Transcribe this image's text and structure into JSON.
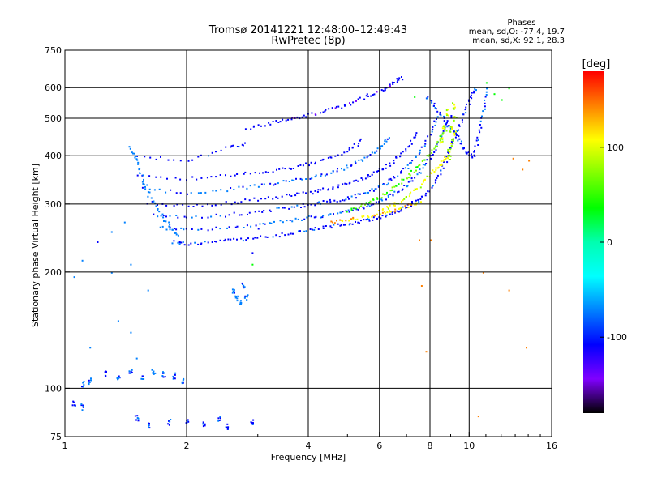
{
  "chart_data": {
    "type": "scatter",
    "title": "Tromsø 20141221 12:48:00–12:49:43",
    "subtitle": "RwPretec (8p)",
    "stats": {
      "heading": "Phases",
      "line_o": "mean, sd,O: -77.4, 19.7",
      "line_x": "mean, sd,X:  92.1, 28.3"
    },
    "xlabel": "Frequency [MHz]",
    "ylabel": "Stationary phase Virtual Height [km]",
    "xscale": "log",
    "yscale": "log",
    "xlim": [
      1,
      16
    ],
    "ylim": [
      75,
      750
    ],
    "xticks": [
      1,
      2,
      4,
      6,
      8,
      10,
      16
    ],
    "xtick_labels": [
      "1",
      "2",
      "4",
      "6",
      "8",
      "10",
      "16"
    ],
    "x_gridlines": [
      2,
      4,
      6,
      8,
      10
    ],
    "yticks": [
      75,
      100,
      200,
      300,
      400,
      500,
      600,
      750
    ],
    "ytick_labels": [
      "75",
      "100",
      "200",
      "300",
      "400",
      "500",
      "600",
      "750"
    ],
    "y_gridlines": [
      100,
      200,
      300,
      400,
      500,
      600
    ],
    "grid": true,
    "colorbar": {
      "label": "[deg]",
      "range": [
        -180,
        180
      ],
      "ticks": [
        100,
        0,
        -100
      ],
      "tick_labels": [
        "100",
        "0",
        "-100"
      ],
      "colors": [
        "#ff0000",
        "#ff8000",
        "#ffff00",
        "#80ff00",
        "#00ff00",
        "#00ffb0",
        "#00ffff",
        "#0080ff",
        "#0000ff",
        "#8000ff",
        "#000000"
      ]
    },
    "series": [
      {
        "phase": -100,
        "trace_type": "curve",
        "points": [
          [
            1.85,
            240
          ],
          [
            2.0,
            238
          ],
          [
            2.3,
            240
          ],
          [
            2.6,
            243
          ],
          [
            3.0,
            246
          ],
          [
            3.5,
            252
          ],
          [
            4.0,
            258
          ],
          [
            4.5,
            263
          ],
          [
            5.0,
            268
          ],
          [
            5.5,
            273
          ],
          [
            6.0,
            278
          ],
          [
            6.5,
            286
          ],
          [
            7.0,
            296
          ],
          [
            7.5,
            310
          ],
          [
            8.0,
            330
          ],
          [
            8.4,
            360
          ],
          [
            8.8,
            400
          ],
          [
            9.2,
            450
          ],
          [
            9.6,
            510
          ],
          [
            10.0,
            560
          ],
          [
            10.4,
            600
          ]
        ]
      },
      {
        "phase": -90,
        "trace_type": "curve",
        "points": [
          [
            1.7,
            262
          ],
          [
            2.0,
            258
          ],
          [
            2.5,
            262
          ],
          [
            3.0,
            266
          ],
          [
            3.5,
            272
          ],
          [
            4.0,
            278
          ],
          [
            4.5,
            283
          ],
          [
            5.0,
            288
          ],
          [
            5.5,
            296
          ],
          [
            6.0,
            306
          ],
          [
            6.5,
            320
          ],
          [
            7.0,
            338
          ],
          [
            7.5,
            365
          ],
          [
            8.0,
            400
          ],
          [
            8.5,
            450
          ],
          [
            9.0,
            510
          ]
        ]
      },
      {
        "phase": -95,
        "trace_type": "curve",
        "points": [
          [
            1.65,
            282
          ],
          [
            2.0,
            277
          ],
          [
            2.5,
            282
          ],
          [
            3.0,
            288
          ],
          [
            3.5,
            294
          ],
          [
            4.0,
            300
          ],
          [
            4.5,
            306
          ],
          [
            5.0,
            312
          ],
          [
            5.5,
            322
          ],
          [
            6.0,
            335
          ],
          [
            6.5,
            352
          ],
          [
            7.0,
            376
          ],
          [
            7.5,
            410
          ],
          [
            8.0,
            460
          ],
          [
            8.3,
            510
          ]
        ]
      },
      {
        "phase": -105,
        "trace_type": "curve",
        "points": [
          [
            1.6,
            304
          ],
          [
            2.0,
            298
          ],
          [
            2.5,
            303
          ],
          [
            3.0,
            310
          ],
          [
            3.5,
            316
          ],
          [
            4.0,
            322
          ],
          [
            4.5,
            330
          ],
          [
            5.0,
            340
          ],
          [
            5.5,
            352
          ],
          [
            6.0,
            368
          ],
          [
            6.5,
            390
          ],
          [
            7.0,
            420
          ],
          [
            7.4,
            460
          ]
        ]
      },
      {
        "phase": -85,
        "trace_type": "curve",
        "points": [
          [
            1.55,
            330
          ],
          [
            2.0,
            322
          ],
          [
            2.5,
            328
          ],
          [
            3.0,
            336
          ],
          [
            3.5,
            344
          ],
          [
            4.0,
            352
          ],
          [
            4.5,
            362
          ],
          [
            5.0,
            376
          ],
          [
            5.5,
            395
          ],
          [
            6.0,
            420
          ],
          [
            6.3,
            450
          ]
        ]
      },
      {
        "phase": -110,
        "trace_type": "curve",
        "points": [
          [
            1.5,
            360
          ],
          [
            2.0,
            350
          ],
          [
            2.5,
            358
          ],
          [
            3.0,
            364
          ],
          [
            3.5,
            372
          ],
          [
            4.0,
            382
          ],
          [
            4.5,
            396
          ],
          [
            5.0,
            414
          ],
          [
            5.4,
            440
          ]
        ]
      },
      {
        "phase": -100,
        "trace_type": "curve",
        "points": [
          [
            1.5,
            400
          ],
          [
            2.0,
            390
          ],
          [
            2.5,
            420
          ],
          [
            2.8,
            430
          ]
        ]
      },
      {
        "phase": -70,
        "trace_type": "curve",
        "points": [
          [
            1.45,
            420
          ],
          [
            1.5,
            390
          ],
          [
            1.55,
            350
          ],
          [
            1.6,
            320
          ],
          [
            1.7,
            290
          ],
          [
            1.8,
            265
          ],
          [
            1.9,
            250
          ]
        ]
      },
      {
        "phase": -115,
        "trace_type": "curve",
        "points": [
          [
            2.8,
            470
          ],
          [
            3.2,
            488
          ],
          [
            3.6,
            500
          ],
          [
            4.0,
            512
          ],
          [
            4.5,
            528
          ],
          [
            5.0,
            545
          ],
          [
            5.5,
            570
          ],
          [
            6.0,
            592
          ],
          [
            6.5,
            620
          ],
          [
            6.8,
            640
          ]
        ]
      },
      {
        "phase": -95,
        "trace_type": "curve",
        "points": [
          [
            7.8,
            570
          ],
          [
            8.2,
            540
          ],
          [
            8.6,
            500
          ],
          [
            9.0,
            470
          ],
          [
            9.4,
            440
          ],
          [
            9.8,
            410
          ],
          [
            10.2,
            400
          ],
          [
            10.5,
            450
          ],
          [
            10.8,
            520
          ],
          [
            11.0,
            600
          ]
        ]
      },
      {
        "phase": 120,
        "trace_type": "curve",
        "points": [
          [
            4.5,
            270
          ],
          [
            5.0,
            274
          ],
          [
            5.5,
            279
          ],
          [
            6.0,
            284
          ],
          [
            6.5,
            290
          ],
          [
            7.0,
            298
          ],
          [
            7.5,
            306
          ]
        ]
      },
      {
        "phase": 95,
        "trace_type": "curve",
        "points": [
          [
            6.0,
            290
          ],
          [
            6.5,
            300
          ],
          [
            7.0,
            315
          ],
          [
            7.5,
            335
          ],
          [
            8.0,
            360
          ],
          [
            8.4,
            380
          ],
          [
            8.8,
            400
          ],
          [
            9.0,
            430
          ],
          [
            9.2,
            460
          ]
        ]
      },
      {
        "phase": 60,
        "trace_type": "curve",
        "points": [
          [
            5.0,
            290
          ],
          [
            5.5,
            300
          ],
          [
            6.0,
            315
          ],
          [
            6.5,
            332
          ],
          [
            7.0,
            355
          ],
          [
            7.5,
            380
          ],
          [
            8.0,
            410
          ],
          [
            8.4,
            440
          ],
          [
            8.7,
            470
          ]
        ]
      },
      {
        "phase": 90,
        "trace_type": "cluster",
        "points": [
          [
            8.6,
            480
          ],
          [
            8.8,
            520
          ],
          [
            9.0,
            470
          ],
          [
            9.2,
            500
          ],
          [
            8.5,
            440
          ],
          [
            8.9,
            400
          ],
          [
            9.1,
            540
          ]
        ]
      },
      {
        "phase": -80,
        "trace_type": "cluster",
        "points": [
          [
            2.6,
            178
          ],
          [
            2.7,
            168
          ],
          [
            2.8,
            172
          ],
          [
            2.75,
            185
          ],
          [
            2.65,
            172
          ]
        ]
      },
      {
        "phase": -85,
        "trace_type": "cluster",
        "points": [
          [
            1.1,
            103
          ],
          [
            1.15,
            105
          ],
          [
            1.25,
            110
          ],
          [
            1.35,
            107
          ],
          [
            1.45,
            110
          ],
          [
            1.55,
            108
          ],
          [
            1.65,
            110
          ],
          [
            1.75,
            109
          ],
          [
            1.85,
            108
          ],
          [
            1.95,
            105
          ]
        ]
      },
      {
        "phase": -95,
        "trace_type": "cluster",
        "points": [
          [
            1.05,
            92
          ],
          [
            1.1,
            90
          ],
          [
            1.5,
            84
          ],
          [
            1.6,
            80
          ],
          [
            1.8,
            82
          ],
          [
            2.0,
            83
          ],
          [
            2.2,
            81
          ],
          [
            2.4,
            84
          ],
          [
            2.5,
            80
          ],
          [
            2.9,
            82
          ]
        ]
      },
      {
        "phase": -90,
        "trace_type": "sparse",
        "points": [
          [
            1.05,
            195
          ],
          [
            1.1,
            215
          ],
          [
            1.2,
            240
          ],
          [
            1.3,
            200
          ],
          [
            1.3,
            255
          ],
          [
            1.4,
            270
          ],
          [
            1.45,
            210
          ],
          [
            1.35,
            150
          ],
          [
            1.15,
            128
          ],
          [
            1.45,
            140
          ],
          [
            1.5,
            120
          ],
          [
            2.9,
            225
          ],
          [
            3.0,
            260
          ],
          [
            1.6,
            180
          ]
        ]
      },
      {
        "phase": 150,
        "trace_type": "sparse",
        "points": [
          [
            7.5,
            243
          ],
          [
            8.0,
            243
          ],
          [
            10.5,
            85
          ],
          [
            7.6,
            185
          ],
          [
            7.8,
            125
          ],
          [
            10.8,
            200
          ],
          [
            12.8,
            395
          ],
          [
            13.5,
            370
          ],
          [
            14.0,
            390
          ],
          [
            13.8,
            128
          ],
          [
            12.5,
            180
          ]
        ]
      },
      {
        "phase": 40,
        "trace_type": "sparse",
        "points": [
          [
            11.5,
            580
          ],
          [
            12.0,
            560
          ],
          [
            11.0,
            620
          ],
          [
            12.5,
            600
          ],
          [
            2.9,
            210
          ],
          [
            7.3,
            570
          ]
        ]
      }
    ]
  }
}
